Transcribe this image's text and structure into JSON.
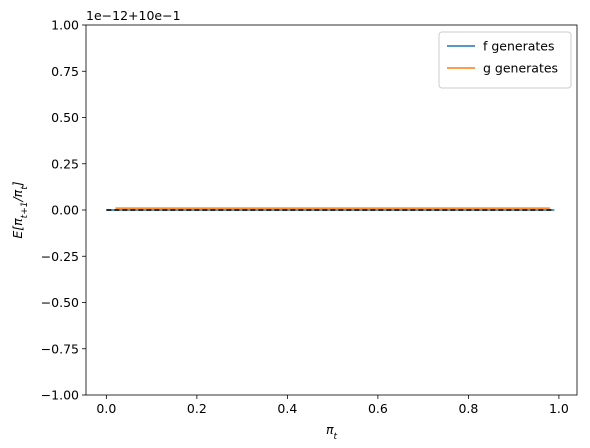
{
  "chart_data": {
    "type": "line",
    "offset_text": "1e−12+10e−1",
    "xlabel": [
      {
        "text": "π"
      },
      {
        "text": "t",
        "sub": true
      }
    ],
    "ylabel": [
      {
        "text": "E[π"
      },
      {
        "text": "t+1",
        "sub": true
      },
      {
        "text": "/π"
      },
      {
        "text": "t",
        "sub": true
      },
      {
        "text": "]"
      }
    ],
    "xlim": [
      -0.045,
      1.04
    ],
    "ylim": [
      -1,
      1
    ],
    "xticks": [
      {
        "value": 0,
        "label": "0.0"
      },
      0.2,
      0.4,
      0.6,
      0.8,
      {
        "value": 1,
        "label": "1.0"
      }
    ],
    "yticks": [
      {
        "value": -1,
        "label": "−1.00"
      },
      {
        "value": -0.75,
        "label": "−0.75"
      },
      {
        "value": -0.5,
        "label": "−0.50"
      },
      {
        "value": -0.25,
        "label": "−0.25"
      },
      {
        "value": 0,
        "label": "0.00"
      },
      0.25,
      {
        "value": 0.5,
        "label": "0.50"
      },
      0.75,
      {
        "value": 1,
        "label": "1.00"
      }
    ],
    "series": [
      {
        "name": "f generates",
        "color": "#1f77b4",
        "x": [
          0,
          0.99
        ],
        "values": [
          0,
          0
        ]
      },
      {
        "name": "g generates",
        "color": "#ff7f0e",
        "x": [
          0.02,
          0.98
        ],
        "values": [
          0.01,
          0.01
        ]
      }
    ],
    "hline": {
      "y": 0,
      "x": [
        0,
        0.99
      ],
      "color": "#000000",
      "dashed": true
    },
    "legend": "upper right"
  }
}
